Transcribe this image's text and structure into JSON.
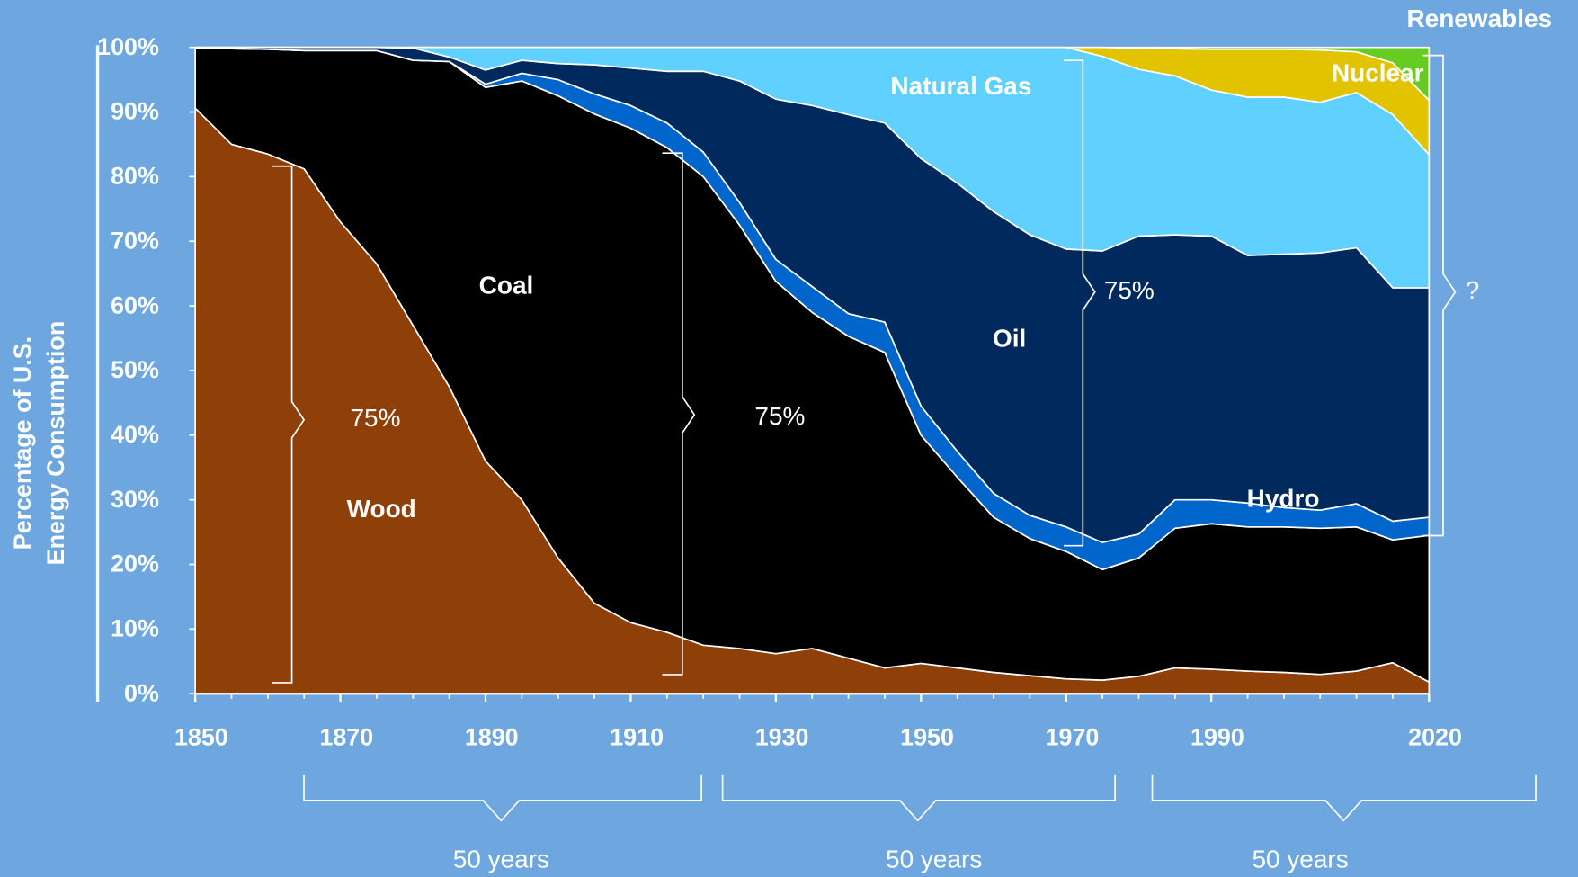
{
  "chart_data": {
    "type": "area",
    "stacked": true,
    "ylabel": [
      "Percentage of U.S.",
      "Energy Consumption"
    ],
    "x": [
      1850,
      1855,
      1860,
      1865,
      1870,
      1875,
      1880,
      1885,
      1890,
      1895,
      1900,
      1905,
      1910,
      1915,
      1920,
      1925,
      1930,
      1935,
      1940,
      1945,
      1950,
      1955,
      1960,
      1965,
      1970,
      1975,
      1980,
      1985,
      1990,
      1995,
      2000,
      2005,
      2010,
      2015,
      2020
    ],
    "xlim": [
      1850,
      2020
    ],
    "xticks": [
      1850,
      1870,
      1890,
      1910,
      1930,
      1950,
      1970,
      1990,
      2020
    ],
    "ylim": [
      0,
      100
    ],
    "yticks": [
      {
        "value": 0,
        "label": "0%"
      },
      {
        "value": 10,
        "label": "10%"
      },
      {
        "value": 20,
        "label": "20%"
      },
      {
        "value": 30,
        "label": "30%"
      },
      {
        "value": 40,
        "label": "40%"
      },
      {
        "value": 50,
        "label": "50%"
      },
      {
        "value": 60,
        "label": "60%"
      },
      {
        "value": 70,
        "label": "70%"
      },
      {
        "value": 80,
        "label": "80%"
      },
      {
        "value": 90,
        "label": "90%"
      },
      {
        "value": 100,
        "label": "100%"
      }
    ],
    "series": [
      {
        "name": "Wood",
        "color": "#8f3f08",
        "values": [
          90.6,
          85,
          83.5,
          81.2,
          73,
          66.5,
          57,
          47.5,
          36,
          30,
          21,
          14,
          11,
          9.5,
          7.5,
          7,
          6.2,
          7,
          5.5,
          4,
          4.7,
          4,
          3.3,
          2.8,
          2.3,
          2.1,
          2.7,
          4,
          3.8,
          3.5,
          3.3,
          3,
          3.5,
          4.8,
          1.8
        ]
      },
      {
        "name": "Coal",
        "color": "#000000",
        "values": [
          9.2,
          14.8,
          16.2,
          18.3,
          26.5,
          33,
          41,
          50.3,
          57.8,
          64.8,
          71.5,
          75.7,
          76.5,
          75,
          72.5,
          65.5,
          57.6,
          52,
          49.8,
          48.8,
          35.3,
          29.5,
          24,
          21.2,
          19.7,
          17.1,
          18.3,
          21.6,
          22.5,
          22.3,
          22.5,
          22.6,
          22.3,
          19,
          22.7
        ]
      },
      {
        "name": "Hydro",
        "color": "#0066cc",
        "values": [
          0,
          0,
          0,
          0,
          0,
          0,
          0,
          0,
          0.5,
          1.2,
          2.5,
          3.1,
          3.5,
          3.8,
          3.8,
          3.5,
          3.4,
          4,
          3.5,
          4.7,
          4.5,
          4,
          3.7,
          3.6,
          3.8,
          4.2,
          3.7,
          4.4,
          3.7,
          3.7,
          3,
          2.8,
          3.6,
          2.9,
          2.8
        ]
      },
      {
        "name": "Oil",
        "color": "#00295d",
        "values": [
          0.2,
          0.2,
          0.3,
          0.5,
          0.5,
          0.5,
          1.9,
          0.7,
          2.2,
          2,
          2.5,
          4.5,
          5.8,
          8,
          12.5,
          18.8,
          24.8,
          28,
          30.8,
          30.8,
          38.3,
          41.5,
          43.6,
          43.4,
          43,
          45.1,
          46.1,
          41,
          40.8,
          38.3,
          39.2,
          39.8,
          39.6,
          36.1,
          35.5
        ]
      },
      {
        "name": "Natural Gas",
        "color": "#5fd0ff",
        "values": [
          0,
          0,
          0,
          0,
          0,
          0,
          0.1,
          1.5,
          3.5,
          2,
          2.5,
          2.7,
          3.2,
          3.7,
          3.7,
          5.2,
          8,
          9,
          10.4,
          11.7,
          17.2,
          21,
          25.4,
          29,
          31.2,
          30.1,
          25.8,
          24.6,
          22.6,
          24.5,
          24.3,
          23.3,
          24,
          26.8,
          20.6
        ]
      },
      {
        "name": "Nuclear",
        "color": "#e2c300",
        "values": [
          0,
          0,
          0,
          0,
          0,
          0,
          0,
          0,
          0,
          0,
          0,
          0,
          0,
          0,
          0,
          0,
          0,
          0,
          0,
          0,
          0,
          0,
          0,
          0,
          0,
          1.4,
          3.3,
          4.2,
          6.3,
          7.4,
          7.4,
          8.1,
          6.3,
          8,
          8.4
        ]
      },
      {
        "name": "Renewables",
        "color": "#66cc22",
        "values": [
          0,
          0,
          0,
          0,
          0,
          0,
          0,
          0,
          0,
          0,
          0,
          0,
          0,
          0,
          0,
          0,
          0,
          0,
          0,
          0,
          0,
          0,
          0,
          0,
          0,
          0,
          0.1,
          0.2,
          0.3,
          0.3,
          0.3,
          0.4,
          0.7,
          2.4,
          8.2
        ]
      }
    ],
    "annotations": [
      "75%",
      "75%",
      "75%",
      "?"
    ],
    "spans": [
      "50 years",
      "50 years",
      "50 years"
    ]
  }
}
